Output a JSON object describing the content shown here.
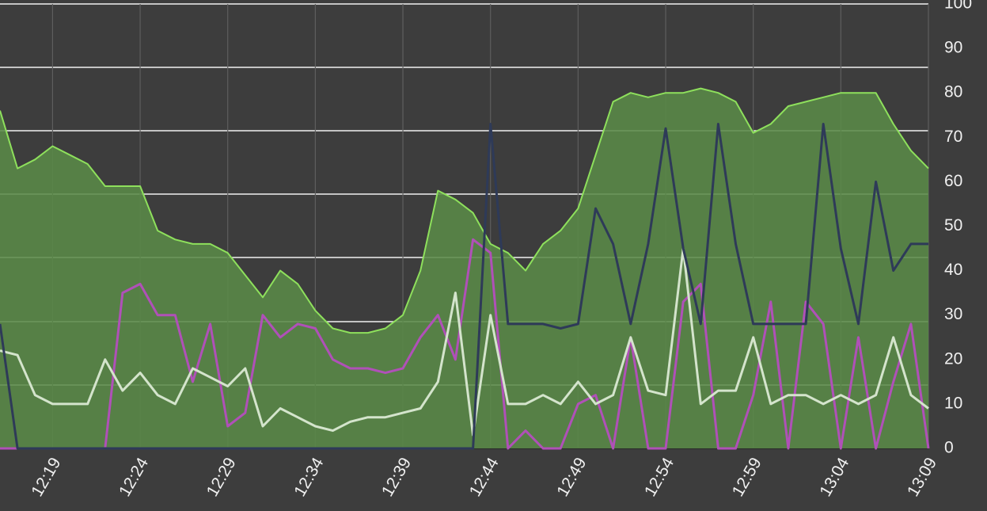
{
  "chart_data": {
    "type": "line",
    "x": [
      "12:16",
      "12:17",
      "12:18",
      "12:19",
      "12:20",
      "12:21",
      "12:22",
      "12:23",
      "12:24",
      "12:25",
      "12:26",
      "12:27",
      "12:28",
      "12:29",
      "12:30",
      "12:31",
      "12:32",
      "12:33",
      "12:34",
      "12:35",
      "12:36",
      "12:37",
      "12:38",
      "12:39",
      "12:40",
      "12:41",
      "12:42",
      "12:43",
      "12:44",
      "12:45",
      "12:46",
      "12:47",
      "12:48",
      "12:49",
      "12:50",
      "12:51",
      "12:52",
      "12:53",
      "12:54",
      "12:55",
      "12:56",
      "12:57",
      "12:58",
      "12:59",
      "13:00",
      "13:01",
      "13:02",
      "13:03",
      "13:04",
      "13:05",
      "13:06",
      "13:07",
      "13:08",
      "13:09"
    ],
    "xlim": [
      "12:16",
      "13:09"
    ],
    "xticks": [
      "12:19",
      "12:24",
      "12:29",
      "12:34",
      "12:39",
      "12:44",
      "12:49",
      "12:54",
      "12:59",
      "13:04",
      "13:09"
    ],
    "ylim": [
      0,
      100
    ],
    "yticks": [
      0,
      10,
      20,
      30,
      40,
      50,
      60,
      70,
      80,
      90,
      100
    ],
    "series": [
      {
        "color": "#8ee05c",
        "area": true,
        "values": [
          76,
          63,
          65,
          68,
          66,
          64,
          59,
          59,
          59,
          49,
          47,
          46,
          46,
          44,
          39,
          34,
          40,
          37,
          31,
          27,
          26,
          26,
          27,
          30,
          40,
          58,
          56,
          53,
          46,
          44,
          40,
          46,
          49,
          54,
          66,
          78,
          80,
          79,
          80,
          80,
          81,
          80,
          78,
          71,
          73,
          77,
          78,
          79,
          80,
          80,
          80,
          73,
          67,
          63
        ]
      },
      {
        "color": "#b050b8",
        "values": [
          0,
          0,
          0,
          0,
          0,
          0,
          0,
          35,
          37,
          30,
          30,
          15,
          28,
          5,
          8,
          30,
          25,
          28,
          27,
          20,
          18,
          18,
          17,
          18,
          25,
          30,
          20,
          47,
          44,
          0,
          4,
          0,
          0,
          10,
          12,
          0,
          25,
          0,
          0,
          33,
          37,
          0,
          0,
          12,
          33,
          0,
          33,
          28,
          0,
          25,
          0,
          15,
          28,
          0
        ]
      },
      {
        "color": "#d4e4cc",
        "values": [
          22,
          21,
          12,
          10,
          10,
          10,
          20,
          13,
          17,
          12,
          10,
          18,
          16,
          14,
          18,
          5,
          9,
          7,
          5,
          4,
          6,
          7,
          7,
          8,
          9,
          15,
          35,
          3,
          30,
          10,
          10,
          12,
          10,
          15,
          10,
          12,
          25,
          13,
          12,
          45,
          10,
          13,
          13,
          25,
          10,
          12,
          12,
          10,
          12,
          10,
          12,
          25,
          12,
          9
        ]
      },
      {
        "color": "#2e3a58",
        "values": [
          28,
          0,
          0,
          0,
          0,
          0,
          0,
          0,
          0,
          0,
          0,
          0,
          0,
          0,
          0,
          0,
          0,
          0,
          0,
          0,
          0,
          0,
          0,
          0,
          0,
          0,
          0,
          0,
          73,
          28,
          28,
          28,
          27,
          28,
          54,
          46,
          28,
          46,
          72,
          45,
          28,
          73,
          46,
          28,
          28,
          28,
          28,
          73,
          45,
          28,
          60,
          40,
          46,
          46
        ]
      }
    ]
  }
}
